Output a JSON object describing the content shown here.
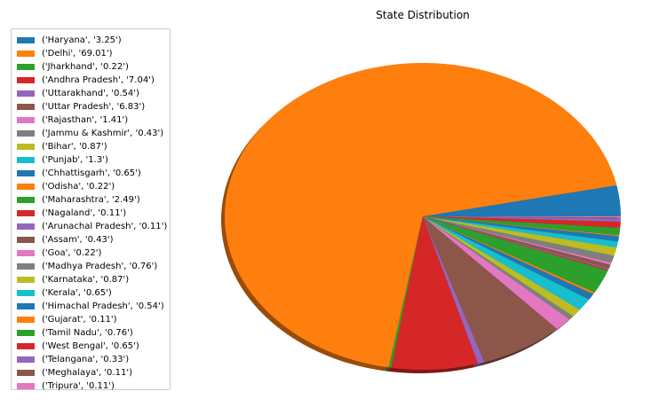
{
  "chart_data": {
    "type": "pie",
    "title": "State Distribution",
    "shadow": true,
    "legend_position": "upper-left",
    "slices": [
      {
        "label": "('Haryana', '3.25')",
        "value": 3.25,
        "color": "#1f77b4"
      },
      {
        "label": "('Delhi', '69.01')",
        "value": 69.01,
        "color": "#ff7f0e"
      },
      {
        "label": "('Jharkhand', '0.22')",
        "value": 0.22,
        "color": "#2ca02c"
      },
      {
        "label": "('Andhra Pradesh', '7.04')",
        "value": 7.04,
        "color": "#d62728"
      },
      {
        "label": "('Uttarakhand', '0.54')",
        "value": 0.54,
        "color": "#9467bd"
      },
      {
        "label": "('Uttar Pradesh', '6.83')",
        "value": 6.83,
        "color": "#8c564b"
      },
      {
        "label": "('Rajasthan', '1.41')",
        "value": 1.41,
        "color": "#e377c2"
      },
      {
        "label": "('Jammu & Kashmir', '0.43')",
        "value": 0.43,
        "color": "#7f7f7f"
      },
      {
        "label": "('Bihar', '0.87')",
        "value": 0.87,
        "color": "#bcbd22"
      },
      {
        "label": "('Punjab', '1.3')",
        "value": 1.3,
        "color": "#17becf"
      },
      {
        "label": "('Chhattisgarh', '0.65')",
        "value": 0.65,
        "color": "#1f77b4"
      },
      {
        "label": "('Odisha', '0.22')",
        "value": 0.22,
        "color": "#ff7f0e"
      },
      {
        "label": "('Maharashtra', '2.49')",
        "value": 2.49,
        "color": "#2ca02c"
      },
      {
        "label": "('Nagaland', '0.11')",
        "value": 0.11,
        "color": "#d62728"
      },
      {
        "label": "('Arunachal Pradesh', '0.11')",
        "value": 0.11,
        "color": "#9467bd"
      },
      {
        "label": "('Assam', '0.43')",
        "value": 0.43,
        "color": "#8c564b"
      },
      {
        "label": "('Goa', '0.22')",
        "value": 0.22,
        "color": "#e377c2"
      },
      {
        "label": "('Madhya Pradesh', '0.76')",
        "value": 0.76,
        "color": "#7f7f7f"
      },
      {
        "label": "('Karnataka', '0.87')",
        "value": 0.87,
        "color": "#bcbd22"
      },
      {
        "label": "('Kerala', '0.65')",
        "value": 0.65,
        "color": "#17becf"
      },
      {
        "label": "('Himachal Pradesh', '0.54')",
        "value": 0.54,
        "color": "#1f77b4"
      },
      {
        "label": "('Gujarat', '0.11')",
        "value": 0.11,
        "color": "#ff7f0e"
      },
      {
        "label": "('Tamil Nadu', '0.76')",
        "value": 0.76,
        "color": "#2ca02c"
      },
      {
        "label": "('West Bengal', '0.65')",
        "value": 0.65,
        "color": "#d62728"
      },
      {
        "label": "('Telangana', '0.33')",
        "value": 0.33,
        "color": "#9467bd"
      },
      {
        "label": "('Meghalaya', '0.11')",
        "value": 0.11,
        "color": "#8c564b"
      },
      {
        "label": "('Tripura', '0.11')",
        "value": 0.11,
        "color": "#e377c2"
      }
    ]
  }
}
